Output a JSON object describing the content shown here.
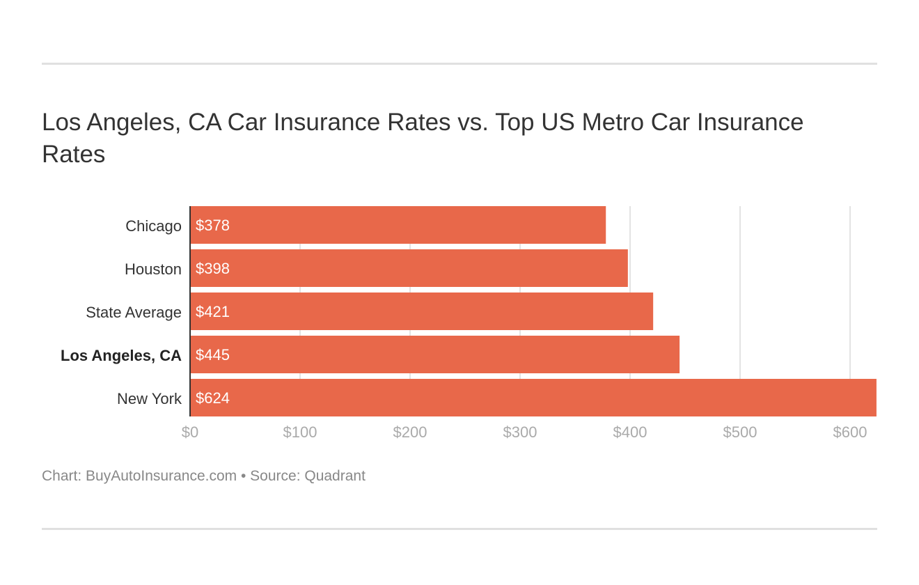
{
  "chart_data": {
    "type": "bar",
    "orientation": "horizontal",
    "title": "Los Angeles, CA Car Insurance Rates vs. Top US Metro Car Insurance Rates",
    "categories": [
      "Chicago",
      "Houston",
      "State Average",
      "Los Angeles, CA",
      "New York"
    ],
    "values": [
      378,
      398,
      421,
      445,
      624
    ],
    "value_labels": [
      "$378",
      "$398",
      "$421",
      "$445",
      "$624"
    ],
    "highlighted_category": "Los Angeles, CA",
    "xlim": [
      0,
      624
    ],
    "xticks": [
      0,
      100,
      200,
      300,
      400,
      500,
      600
    ],
    "xtick_labels": [
      "$0",
      "$100",
      "$200",
      "$300",
      "$400",
      "$500",
      "$600"
    ],
    "grid": "vertical",
    "bar_color": "#e8684a"
  },
  "footer": "Chart: BuyAutoInsurance.com • Source: Quadrant"
}
